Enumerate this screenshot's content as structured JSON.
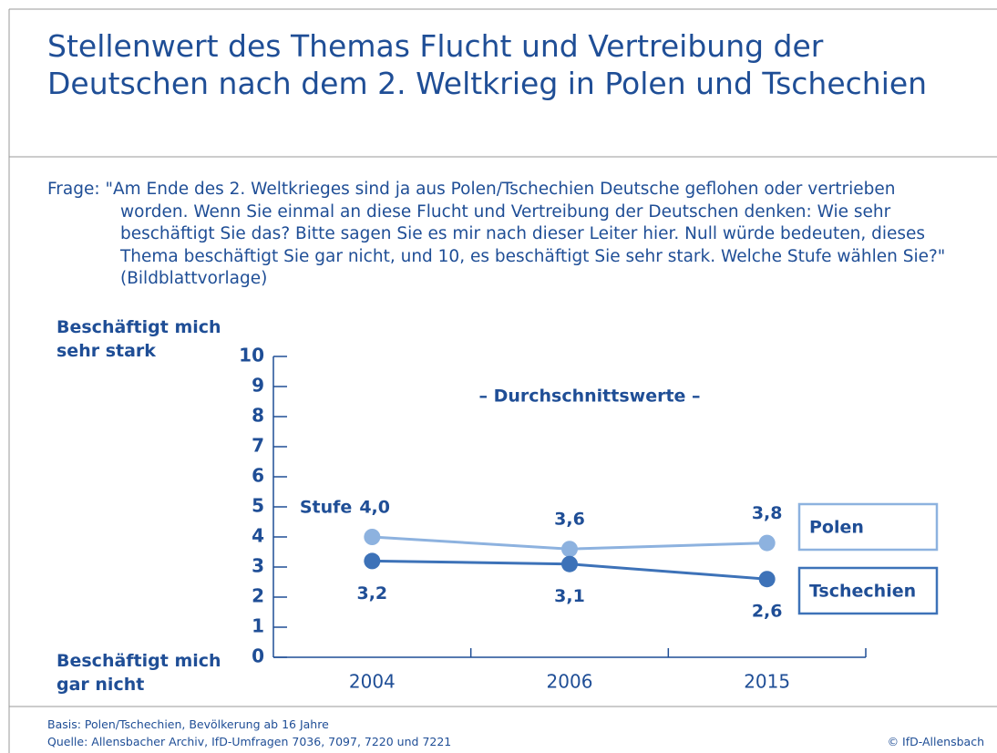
{
  "chart_data": {
    "type": "line",
    "title": "Stellenwert des Themas Flucht und Vertreibung der Deutschen nach dem 2. Weltkrieg in Polen und Tschechien",
    "question": "Frage: \"Am Ende des 2. Weltkrieges sind ja aus Polen/Tschechien Deutsche geflohen oder vertrieben worden. Wenn Sie einmal an diese Flucht und Vertreibung der Deutschen denken: Wie sehr beschäftigt Sie das? Bitte sagen Sie es mir nach dieser Leiter hier. Null würde bedeuten, dieses Thema beschäftigt Sie gar nicht, und 10, es beschäftigt Sie sehr stark. Welche Stufe wählen Sie?\" (Bildblattvorlage)",
    "subtitle": "– Durchschnittswerte –",
    "y_label_top": "Beschäftigt mich sehr stark",
    "y_label_bottom": "Beschäftigt mich gar nicht",
    "annotation": "Stufe",
    "categories": [
      "2004",
      "2006",
      "2015"
    ],
    "series": [
      {
        "name": "Polen",
        "color": "#8db2df",
        "values": [
          4.0,
          3.6,
          3.8
        ],
        "value_labels": [
          "4,0",
          "3,6",
          "3,8"
        ]
      },
      {
        "name": "Tschechien",
        "color": "#3d72b8",
        "values": [
          3.2,
          3.1,
          2.6
        ],
        "value_labels": [
          "3,2",
          "3,1",
          "2,6"
        ]
      }
    ],
    "ylim": [
      0,
      10
    ],
    "yticks": [
      0,
      1,
      2,
      3,
      4,
      5,
      6,
      7,
      8,
      9,
      10
    ],
    "basis": "Basis: Polen/Tschechien, Bevölkerung ab 16 Jahre",
    "source": "Quelle: Allensbacher Archiv, IfD-Umfragen 7036, 7097, 7220 und 7221",
    "copyright": "© IfD-Allensbach"
  }
}
